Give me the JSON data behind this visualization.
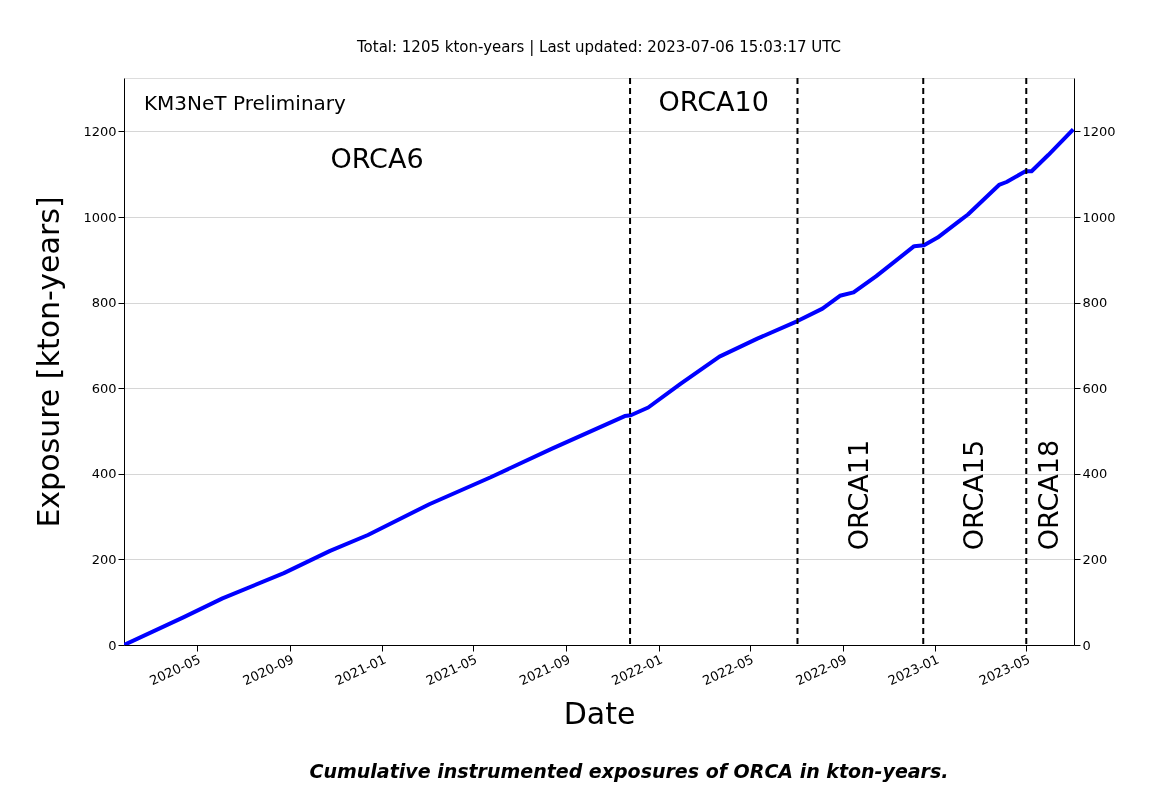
{
  "chart_data": {
    "type": "line",
    "title": "Total: 1205 kton-years   |   Last updated: 2023-07-06 15:03:17 UTC",
    "xlabel": "Date",
    "ylabel": "Exposure [kton-years]",
    "x": [
      "2020-01-26",
      "2020-04-14",
      "2020-06-04",
      "2020-08-24",
      "2020-10-24",
      "2020-12-13",
      "2021-03-04",
      "2021-05-24",
      "2021-08-13",
      "2021-11-17",
      "2021-11-25",
      "2021-12-18",
      "2022-01-30",
      "2022-03-22",
      "2022-05-11",
      "2022-07-03",
      "2022-08-05",
      "2022-08-28",
      "2022-09-15",
      "2022-10-15",
      "2022-12-04",
      "2022-12-17",
      "2023-01-04",
      "2023-02-01",
      "2023-02-13",
      "2023-03-26",
      "2023-04-05",
      "2023-04-30",
      "2023-05-08",
      "2023-05-30",
      "2023-07-02"
    ],
    "series": [
      {
        "color": "#0000ff",
        "values": [
          0,
          65,
          109,
          168,
          220,
          257,
          329,
          392,
          459,
          535,
          537,
          555,
          611,
          674,
          716,
          757,
          786,
          816,
          824,
          862,
          932,
          934,
          952,
          990,
          1006,
          1075,
          1082,
          1107,
          1107,
          1145,
          1205
        ]
      }
    ],
    "xlim": [
      "2020-01-26",
      "2023-07-03"
    ],
    "xticks": [
      "2020-05",
      "2020-09",
      "2021-01",
      "2021-05",
      "2021-09",
      "2022-01",
      "2022-05",
      "2022-09",
      "2023-01",
      "2023-05"
    ],
    "ylim": [
      0,
      1325
    ],
    "yticks": [
      0,
      200,
      400,
      600,
      800,
      1000,
      1200
    ],
    "y2lim": [
      0,
      1325
    ],
    "y2ticks": [
      0,
      200,
      400,
      600,
      800,
      1000,
      1200
    ],
    "grid": "y",
    "marker": "none",
    "line_style": "solid",
    "ref_lines": [
      {
        "axis": "x",
        "value": "2021-11-24",
        "color": "#000000",
        "line_style": "dashed"
      },
      {
        "axis": "x",
        "value": "2022-07-03",
        "color": "#000000",
        "line_style": "dashed"
      },
      {
        "axis": "x",
        "value": "2022-12-16",
        "color": "#000000",
        "line_style": "dashed"
      },
      {
        "axis": "x",
        "value": "2023-05-01",
        "color": "#000000",
        "line_style": "dashed"
      }
    ],
    "annotations": [
      "KM3NeT Preliminary",
      "ORCA6",
      "ORCA10",
      "ORCA11",
      "ORCA15",
      "ORCA18",
      "Cumulative instrumented exposures of ORCA in kton-years."
    ]
  }
}
